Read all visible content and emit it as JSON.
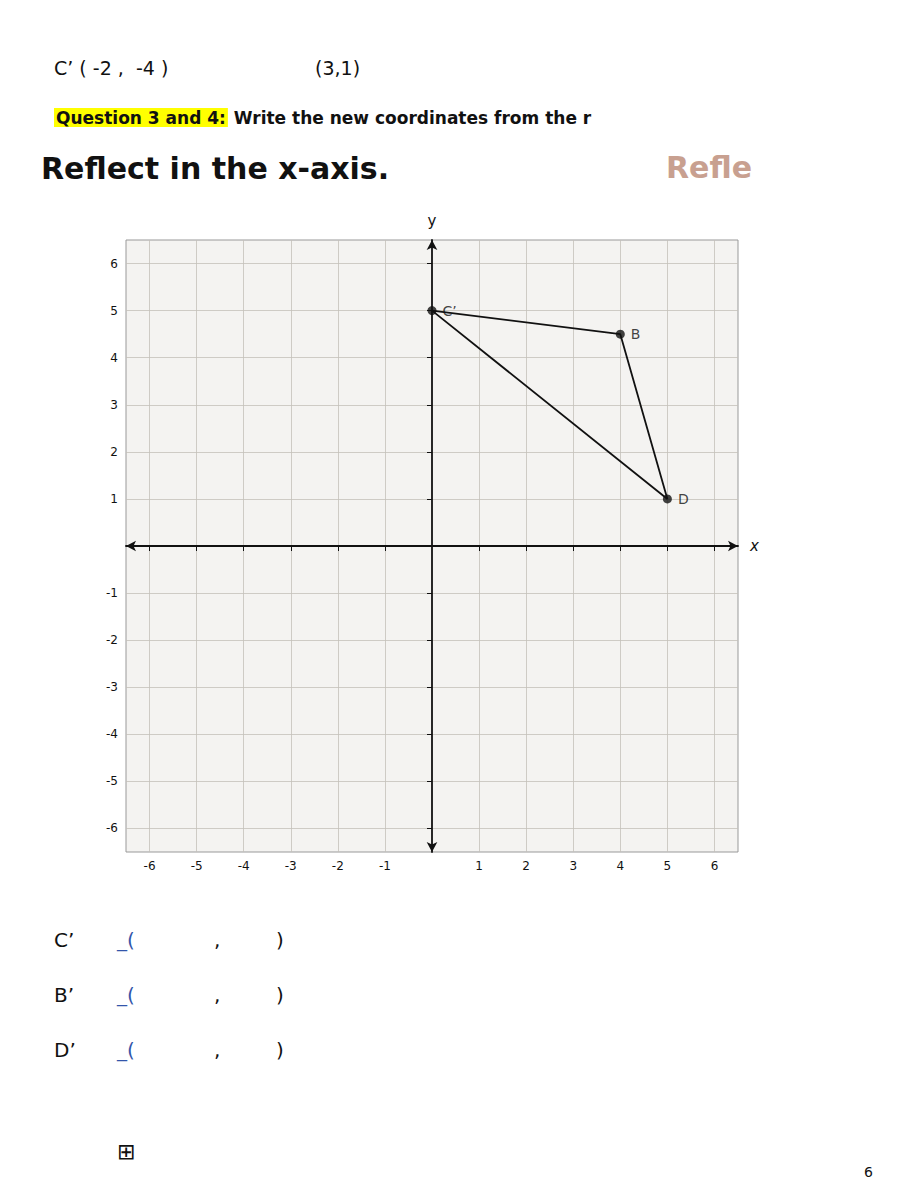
{
  "chart_data": {
    "type": "scatter",
    "title": "Reflect in the x-axis.",
    "annotations": [
      [
        "C’ ( -2 ,  -4 )",
        "(3,1)"
      ],
      [
        "Question 3 and 4:",
        " Write the new coordinates from the r"
      ],
      [
        "Refle"
      ],
      [
        "C’",
        "_(",
        ",",
        ")"
      ],
      [
        "B’",
        "_(",
        ",",
        ")"
      ],
      [
        "D’",
        "_(",
        ",",
        ")"
      ],
      [
        "⊞",
        "6"
      ]
    ],
    "x_label": "x",
    "y_label": "y",
    "x": [
      0,
      4,
      5
    ],
    "values": [
      5,
      4.5,
      1
    ],
    "labels": [
      "C’",
      "B",
      "D"
    ],
    "color": "#111111",
    "marker": "circle",
    "line_style": "solid",
    "xlim": [
      -6.5,
      6.5
    ],
    "ylim": [
      -6.5,
      6.5
    ],
    "xticks": [
      -6,
      -5,
      -4,
      -3,
      -2,
      -1,
      1,
      2,
      3,
      4,
      5,
      6
    ],
    "yticks": [
      -6,
      -5,
      -4,
      -3,
      -2,
      -1,
      1,
      2,
      3,
      4,
      5,
      6
    ],
    "grid": true
  }
}
